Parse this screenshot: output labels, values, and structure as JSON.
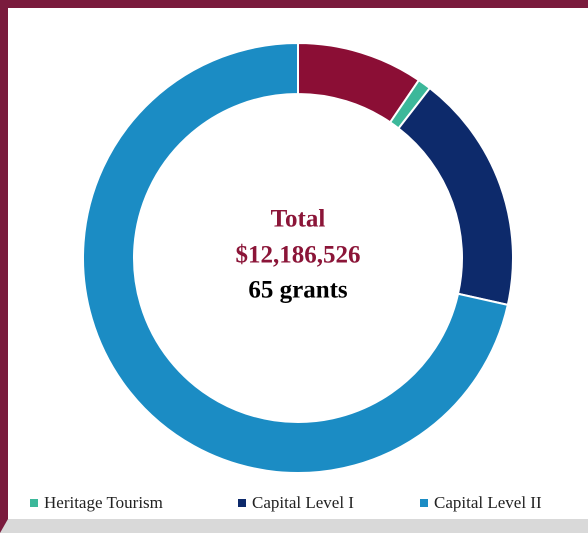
{
  "chart_data": {
    "type": "donut",
    "center_text": [
      "Total",
      "$12,186,526",
      "65 grants"
    ],
    "categories": [
      null,
      "Heritage Tourism",
      "Capital Level I",
      "Capital Level II"
    ],
    "values": [
      9.5,
      1,
      18,
      71.5
    ],
    "colors": [
      "#8b0e35",
      "#3cb89a",
      "#0d2a6b",
      "#1b8cc4"
    ]
  }
}
